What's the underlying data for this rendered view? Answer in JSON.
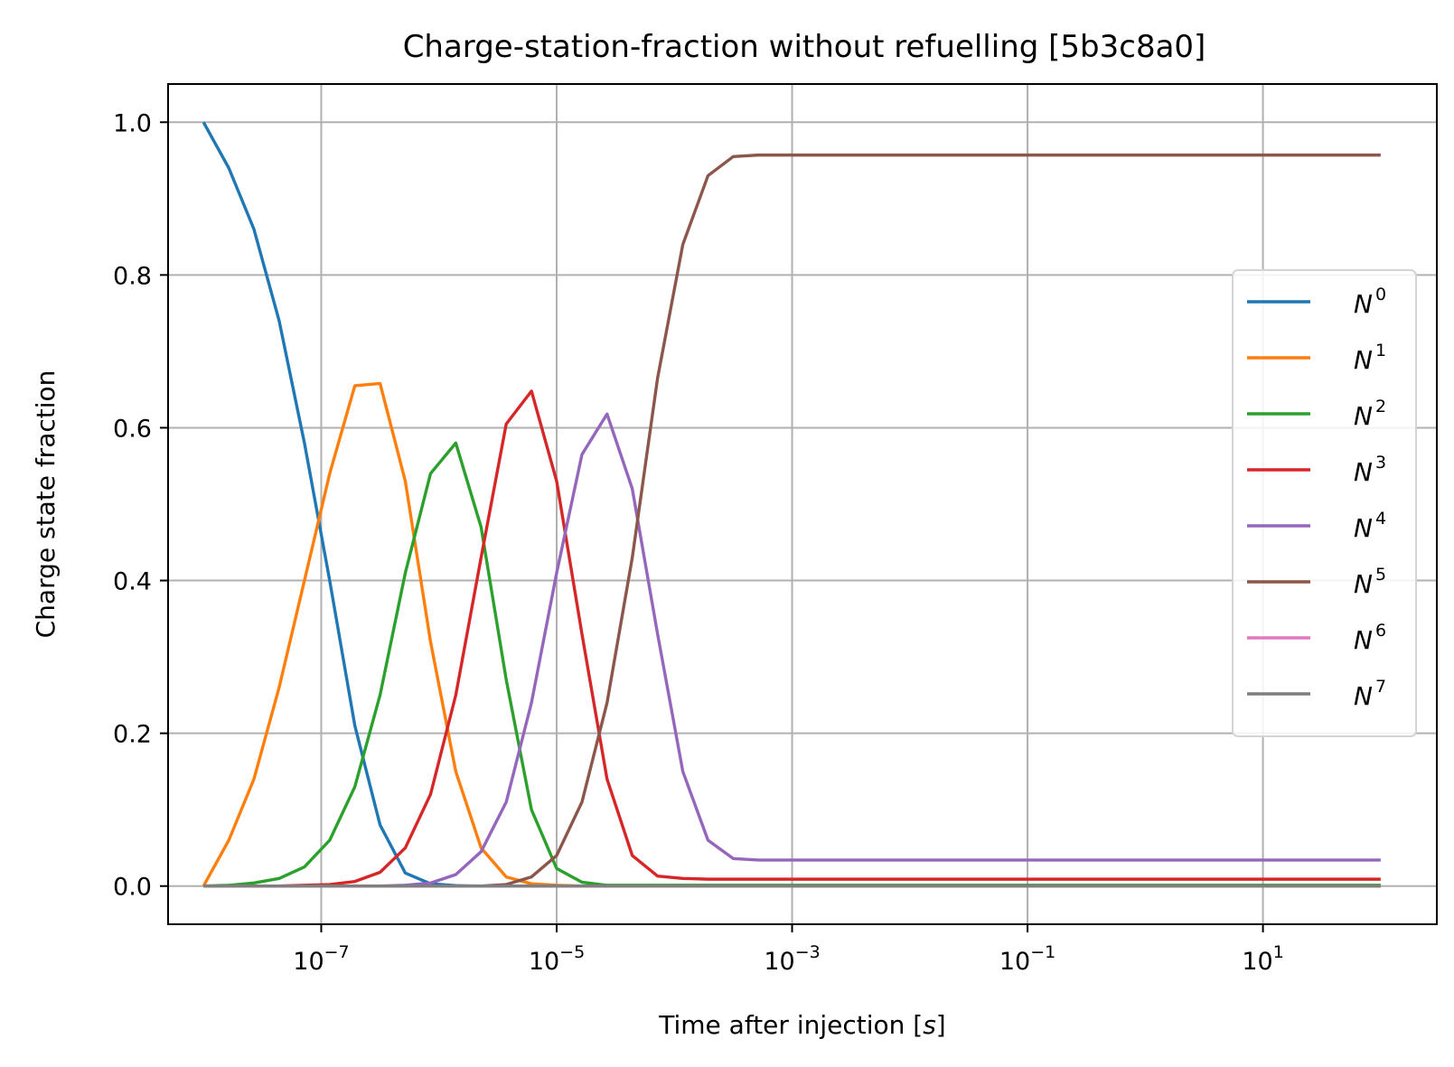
{
  "chart_data": {
    "type": "line",
    "title": "Charge-station-fraction without refuelling [5b3c8a0]",
    "xlabel": "Time after injection [",
    "xlabel_unit": "s",
    "xlabel_close": "]",
    "ylabel": "Charge state fraction",
    "xscale": "log",
    "xlim": [
      5e-09,
      300
    ],
    "ylim": [
      -0.05,
      1.05
    ],
    "grid": true,
    "legend_position": "center-right",
    "x_ticks": [
      {
        "value": 1e-07,
        "base": "10",
        "exp": "−7"
      },
      {
        "value": 1e-05,
        "base": "10",
        "exp": "−5"
      },
      {
        "value": 0.001,
        "base": "10",
        "exp": "−3"
      },
      {
        "value": 0.1,
        "base": "10",
        "exp": "−1"
      },
      {
        "value": 10,
        "base": "10",
        "exp": "1"
      }
    ],
    "y_ticks": [
      {
        "value": 0.0,
        "label": "0.0"
      },
      {
        "value": 0.2,
        "label": "0.2"
      },
      {
        "value": 0.4,
        "label": "0.4"
      },
      {
        "value": 0.6,
        "label": "0.6"
      },
      {
        "value": 0.8,
        "label": "0.8"
      },
      {
        "value": 1.0,
        "label": "1.0"
      }
    ],
    "x": [
      1e-08,
      1.64e-08,
      2.68e-08,
      4.39e-08,
      7.2e-08,
      1.18e-07,
      1.93e-07,
      3.16e-07,
      5.18e-07,
      8.48e-07,
      1.39e-06,
      2.28e-06,
      3.73e-06,
      6.11e-06,
      1e-05,
      1.64e-05,
      2.68e-05,
      4.39e-05,
      7.2e-05,
      0.000118,
      0.000193,
      0.000316,
      0.000518,
      0.000848,
      0.00139,
      0.00228,
      0.00373,
      0.00611,
      0.01,
      0.0164,
      0.0268,
      0.0439,
      0.072,
      0.118,
      0.193,
      0.316,
      0.518,
      0.848,
      1.39,
      2.28,
      3.73,
      6.11,
      10.0,
      16.4,
      26.8,
      43.9,
      72.0,
      100.0
    ],
    "series": [
      {
        "name": "N",
        "sup": "0",
        "color": "#1f77b4",
        "values": [
          1.0,
          0.94,
          0.86,
          0.74,
          0.58,
          0.4,
          0.21,
          0.08,
          0.017,
          0.003,
          0.0006,
          0.0001,
          0,
          0,
          0,
          0,
          0,
          0,
          0,
          0,
          0,
          0,
          0,
          0,
          0,
          0,
          0,
          0,
          0,
          0,
          0,
          0,
          0,
          0,
          0,
          0,
          0,
          0,
          0,
          0,
          0,
          0,
          0,
          0,
          0,
          0,
          0,
          0
        ]
      },
      {
        "name": "N",
        "sup": "1",
        "color": "#ff7f0e",
        "values": [
          0.0,
          0.06,
          0.14,
          0.26,
          0.4,
          0.54,
          0.655,
          0.658,
          0.53,
          0.32,
          0.15,
          0.05,
          0.012,
          0.003,
          0.001,
          0,
          0,
          0,
          0,
          0,
          0,
          0,
          0,
          0,
          0,
          0,
          0,
          0,
          0,
          0,
          0,
          0,
          0,
          0,
          0,
          0,
          0,
          0,
          0,
          0,
          0,
          0,
          0,
          0,
          0,
          0,
          0,
          0
        ]
      },
      {
        "name": "N",
        "sup": "2",
        "color": "#2ca02c",
        "values": [
          0.0,
          0.001,
          0.004,
          0.01,
          0.025,
          0.06,
          0.13,
          0.25,
          0.41,
          0.54,
          0.58,
          0.47,
          0.27,
          0.1,
          0.023,
          0.005,
          0.001,
          0.001,
          0.001,
          0.001,
          0.001,
          0.001,
          0.001,
          0.001,
          0.001,
          0.001,
          0.001,
          0.001,
          0.001,
          0.001,
          0.001,
          0.001,
          0.001,
          0.001,
          0.001,
          0.001,
          0.001,
          0.001,
          0.001,
          0.001,
          0.001,
          0.001,
          0.001,
          0.001,
          0.001,
          0.001,
          0.001,
          0.001
        ]
      },
      {
        "name": "N",
        "sup": "3",
        "color": "#d62728",
        "values": [
          0.0,
          0.0,
          0.0,
          0.0,
          0.001,
          0.002,
          0.006,
          0.018,
          0.05,
          0.12,
          0.25,
          0.43,
          0.605,
          0.648,
          0.53,
          0.33,
          0.14,
          0.04,
          0.013,
          0.01,
          0.009,
          0.009,
          0.009,
          0.009,
          0.009,
          0.009,
          0.009,
          0.009,
          0.009,
          0.009,
          0.009,
          0.009,
          0.009,
          0.009,
          0.009,
          0.009,
          0.009,
          0.009,
          0.009,
          0.009,
          0.009,
          0.009,
          0.009,
          0.009,
          0.009,
          0.009,
          0.009,
          0.009
        ]
      },
      {
        "name": "N",
        "sup": "4",
        "color": "#9467bd",
        "values": [
          0.0,
          0.0,
          0.0,
          0.0,
          0.0,
          0.0,
          0.0,
          0.0,
          0.001,
          0.004,
          0.015,
          0.045,
          0.11,
          0.24,
          0.41,
          0.565,
          0.618,
          0.52,
          0.33,
          0.15,
          0.06,
          0.036,
          0.034,
          0.034,
          0.034,
          0.034,
          0.034,
          0.034,
          0.034,
          0.034,
          0.034,
          0.034,
          0.034,
          0.034,
          0.034,
          0.034,
          0.034,
          0.034,
          0.034,
          0.034,
          0.034,
          0.034,
          0.034,
          0.034,
          0.034,
          0.034,
          0.034,
          0.034
        ]
      },
      {
        "name": "N",
        "sup": "5",
        "color": "#8c564b",
        "values": [
          0.0,
          0.0,
          0.0,
          0.0,
          0.0,
          0.0,
          0.0,
          0.0,
          0.0,
          0.0,
          0.0,
          0.0,
          0.002,
          0.012,
          0.04,
          0.11,
          0.24,
          0.43,
          0.665,
          0.84,
          0.93,
          0.955,
          0.957,
          0.957,
          0.957,
          0.957,
          0.957,
          0.957,
          0.957,
          0.957,
          0.957,
          0.957,
          0.957,
          0.957,
          0.957,
          0.957,
          0.957,
          0.957,
          0.957,
          0.957,
          0.957,
          0.957,
          0.957,
          0.957,
          0.957,
          0.957,
          0.957,
          0.957
        ]
      },
      {
        "name": "N",
        "sup": "6",
        "color": "#e377c2",
        "values": [
          0,
          0,
          0,
          0,
          0,
          0,
          0,
          0,
          0,
          0,
          0,
          0,
          0,
          0,
          0,
          0,
          0,
          0,
          0,
          0,
          0,
          0,
          0,
          0,
          0,
          0,
          0,
          0,
          0,
          0,
          0,
          0,
          0,
          0,
          0,
          0,
          0,
          0,
          0,
          0,
          0,
          0,
          0,
          0,
          0,
          0,
          0,
          0
        ]
      },
      {
        "name": "N",
        "sup": "7",
        "color": "#7f7f7f",
        "values": [
          0,
          0,
          0,
          0,
          0,
          0,
          0,
          0,
          0,
          0,
          0,
          0,
          0,
          0,
          0,
          0,
          0,
          0,
          0,
          0,
          0,
          0,
          0,
          0,
          0,
          0,
          0,
          0,
          0,
          0,
          0,
          0,
          0,
          0,
          0,
          0,
          0,
          0,
          0,
          0,
          0,
          0,
          0,
          0,
          0,
          0,
          0,
          0
        ]
      }
    ]
  }
}
